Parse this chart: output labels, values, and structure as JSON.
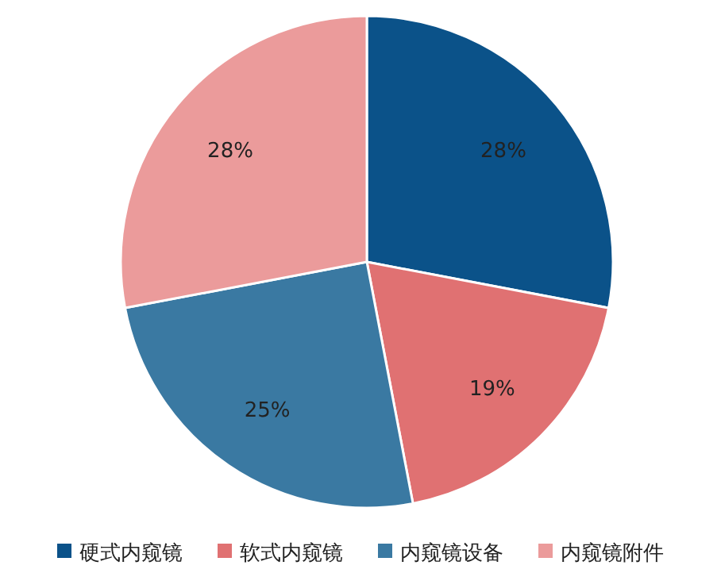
{
  "chart_data": {
    "type": "pie",
    "categories": [
      "硬式内窥镜",
      "软式内窥镜",
      "内窥镜设备",
      "内窥镜附件"
    ],
    "values": [
      28,
      19,
      25,
      28
    ],
    "value_labels": [
      "28%",
      "19%",
      "25%",
      "28%"
    ],
    "colors": [
      "#0b5289",
      "#e07172",
      "#3a79a2",
      "#eb9b9b"
    ],
    "legend": "bottom"
  }
}
